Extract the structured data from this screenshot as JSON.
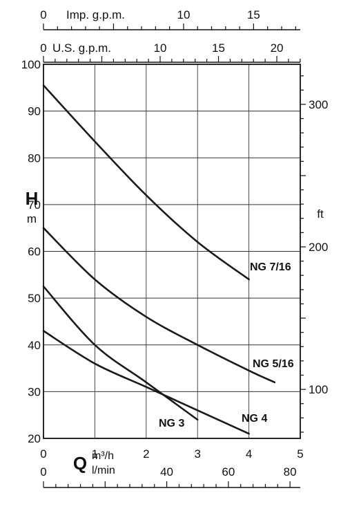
{
  "chart_data": {
    "type": "line",
    "title": "",
    "x": {
      "unit_top": "m³/h",
      "unit_bottom": "l/min",
      "symbol": "Q",
      "range": [
        0,
        5
      ],
      "ticks": [
        "0",
        "1",
        "2",
        "3",
        "4",
        "5"
      ]
    },
    "x_lmin": {
      "range": [
        0,
        83.33
      ],
      "ticks": [
        "0",
        "40",
        "60",
        "80"
      ],
      "tick_values": [
        0,
        40,
        60,
        80
      ]
    },
    "x_us_gpm": {
      "label": "U.S. g.p.m.",
      "range": [
        0,
        22.01
      ],
      "ticks": [
        "0",
        "10",
        "15",
        "20"
      ],
      "tick_values": [
        0,
        10,
        15,
        20
      ]
    },
    "x_imp_gpm": {
      "label": "Imp. g.p.m.",
      "range": [
        0,
        18.33
      ],
      "ticks": [
        "0",
        "10",
        "15"
      ],
      "tick_values": [
        0,
        10,
        15
      ]
    },
    "y": {
      "symbol": "H",
      "unit": "m",
      "range": [
        20,
        100
      ],
      "ticks": [
        "20",
        "30",
        "40",
        "50",
        "60",
        "70",
        "80",
        "90",
        "100"
      ]
    },
    "y_ft": {
      "unit": "ft",
      "ticks": [
        "100",
        "200",
        "300"
      ],
      "tick_values": [
        100,
        200,
        300
      ]
    },
    "grid": true,
    "series": [
      {
        "name": "NG 7/16",
        "x": [
          0,
          1,
          2,
          3,
          4
        ],
        "y": [
          95.5,
          83.5,
          72,
          62,
          54
        ]
      },
      {
        "name": "NG 5/16",
        "x": [
          0,
          1,
          2,
          3,
          4,
          4.5
        ],
        "y": [
          65,
          54,
          46,
          40,
          34.5,
          32
        ]
      },
      {
        "name": "NG 4",
        "x": [
          0,
          1,
          2,
          3,
          4
        ],
        "y": [
          43,
          36,
          31,
          26,
          21
        ]
      },
      {
        "name": "NG 3",
        "x": [
          0,
          1,
          2,
          3
        ],
        "y": [
          52.5,
          40,
          32,
          24
        ]
      }
    ]
  }
}
